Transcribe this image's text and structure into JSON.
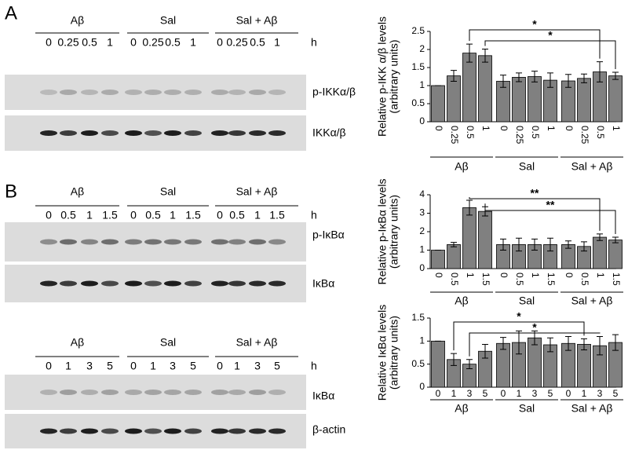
{
  "panels": [
    "A",
    "B"
  ],
  "blots": [
    {
      "groups": [
        "Aβ",
        "Sal",
        "Sal + Aβ"
      ],
      "lanes": [
        "0",
        "0.25",
        "0.5",
        "1"
      ],
      "unit": "h",
      "bands": [
        "p-IKKα/β",
        "IKKα/β"
      ]
    },
    {
      "groups": [
        "Aβ",
        "Sal",
        "Sal + Aβ"
      ],
      "lanes": [
        "0",
        "0.5",
        "1",
        "1.5"
      ],
      "unit": "h",
      "bands": [
        "p-IκBα",
        "IκBα"
      ]
    },
    {
      "groups": [
        "Aβ",
        "Sal",
        "Sal + Aβ"
      ],
      "lanes": [
        "0",
        "1",
        "3",
        "5"
      ],
      "unit": "h",
      "bands": [
        "IκBα",
        "β-actin"
      ]
    }
  ],
  "chart_data": [
    {
      "type": "bar",
      "ylabel": [
        "Relative p-IKK α/β levels",
        "(arbitrary units)"
      ],
      "color": "#808080",
      "categories": [
        "0",
        "0.25",
        "0.5",
        "1"
      ],
      "ylim": [
        0,
        2.5
      ],
      "yticks": [
        0,
        0.5,
        1,
        1.5,
        2,
        2.5
      ],
      "series": [
        {
          "name": "Aβ",
          "values": [
            1,
            1.27,
            1.9,
            1.83
          ],
          "errors": [
            0,
            0.15,
            0.25,
            0.18
          ]
        },
        {
          "name": "Sal",
          "values": [
            1.12,
            1.23,
            1.25,
            1.15
          ],
          "errors": [
            0.17,
            0.12,
            0.15,
            0.2
          ]
        },
        {
          "name": "Sal + Aβ",
          "values": [
            1.13,
            1.2,
            1.38,
            1.27
          ],
          "errors": [
            0.18,
            0.12,
            0.28,
            0.1
          ]
        }
      ],
      "annotations": [
        {
          "text": "*",
          "from": [
            0,
            2
          ],
          "to": [
            2,
            2
          ]
        },
        {
          "text": "*",
          "from": [
            0,
            3
          ],
          "to": [
            2,
            3
          ]
        }
      ]
    },
    {
      "type": "bar",
      "ylabel": [
        "Relative p-IκBα levels",
        "(arbitrary units)"
      ],
      "color": "#808080",
      "categories": [
        "0",
        "0.5",
        "1",
        "1.5"
      ],
      "ylim": [
        0,
        4
      ],
      "yticks": [
        0,
        1,
        2,
        3,
        4
      ],
      "series": [
        {
          "name": "Aβ",
          "values": [
            1,
            1.3,
            3.3,
            3.1
          ],
          "errors": [
            0,
            0.12,
            0.4,
            0.25
          ]
        },
        {
          "name": "Sal",
          "values": [
            1.3,
            1.3,
            1.3,
            1.3
          ],
          "errors": [
            0.3,
            0.35,
            0.3,
            0.35
          ]
        },
        {
          "name": "Sal + Aβ",
          "values": [
            1.3,
            1.2,
            1.7,
            1.55
          ],
          "errors": [
            0.2,
            0.25,
            0.18,
            0.15
          ]
        }
      ],
      "annotations": [
        {
          "text": "**",
          "from": [
            0,
            2
          ],
          "to": [
            2,
            2
          ]
        },
        {
          "text": "**",
          "from": [
            0,
            3
          ],
          "to": [
            2,
            3
          ]
        }
      ]
    },
    {
      "type": "bar",
      "ylabel": [
        "Relative IκBα levels",
        "(arbitrary units)"
      ],
      "color": "#808080",
      "categories": [
        "0",
        "1",
        "3",
        "5"
      ],
      "ylim": [
        0,
        1.5
      ],
      "yticks": [
        0,
        0.5,
        1,
        1.5
      ],
      "series": [
        {
          "name": "Aβ",
          "values": [
            1,
            0.6,
            0.5,
            0.78
          ],
          "errors": [
            0,
            0.13,
            0.1,
            0.15
          ]
        },
        {
          "name": "Sal",
          "values": [
            0.95,
            0.97,
            1.07,
            0.92
          ],
          "errors": [
            0.13,
            0.25,
            0.15,
            0.15
          ]
        },
        {
          "name": "Sal + Aβ",
          "values": [
            0.95,
            0.93,
            0.9,
            0.97
          ],
          "errors": [
            0.15,
            0.12,
            0.2,
            0.17
          ]
        }
      ],
      "annotations": [
        {
          "text": "*",
          "from": [
            0,
            1
          ],
          "to": [
            2,
            1
          ]
        },
        {
          "text": "*",
          "from": [
            0,
            2
          ],
          "to": [
            2,
            2
          ]
        }
      ]
    }
  ]
}
